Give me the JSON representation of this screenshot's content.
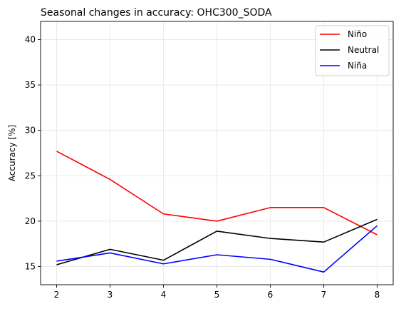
{
  "chart_data": {
    "type": "line",
    "title": "Seasonal changes in accuracy: OHC300_SODA",
    "xlabel": "",
    "ylabel": "Accuracy [%]",
    "x": [
      2,
      3,
      4,
      5,
      6,
      7,
      8
    ],
    "xticks": [
      "2",
      "3",
      "4",
      "5",
      "6",
      "7",
      "8"
    ],
    "yticks": [
      "15",
      "20",
      "25",
      "30",
      "35",
      "40"
    ],
    "xlim": [
      1.7,
      8.3
    ],
    "ylim": [
      13,
      42
    ],
    "grid": true,
    "legend_position": "top-right",
    "series": [
      {
        "name": "Niño",
        "color": "#ff0000",
        "values": [
          27.7,
          24.6,
          20.8,
          20.0,
          21.5,
          21.5,
          18.5
        ]
      },
      {
        "name": "Neutral",
        "color": "#000000",
        "values": [
          15.2,
          16.9,
          15.7,
          18.9,
          18.1,
          17.7,
          20.2
        ]
      },
      {
        "name": "Niña",
        "color": "#0000ff",
        "values": [
          15.6,
          16.5,
          15.3,
          16.3,
          15.8,
          14.4,
          19.5
        ]
      }
    ]
  }
}
